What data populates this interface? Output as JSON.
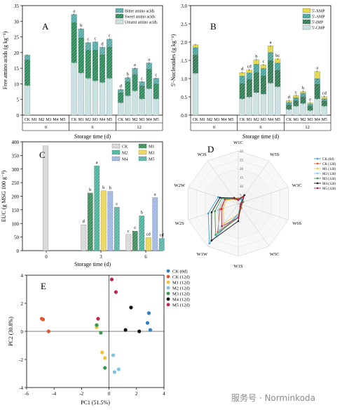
{
  "colors": {
    "bitter": "#5aaaa8",
    "sweet": "#2f8a5c",
    "umami": "#c7dfe0",
    "xmp": "#e3d54a",
    "amp": "#4aa49c",
    "imp": "#327a52",
    "gmp": "#c9dfe0",
    "ck": "#d8d8d8",
    "m1": "#3e8f5d",
    "m2": "#4cb49c",
    "m3": "#ead75a",
    "m4": "#9fb6e0",
    "m5": "#58b5a9"
  },
  "chart_data": [
    {
      "panel": "A",
      "type": "bar",
      "stacked": true,
      "ylabel": "Free amino acids (g kg⁻¹)",
      "xlabel": "Storage time (d)",
      "ylim": [
        0,
        35
      ],
      "yticks": [
        0,
        5,
        10,
        15,
        20,
        25,
        30,
        35
      ],
      "groups": [
        {
          "time": "0",
          "categories": [
            "CK",
            "M1",
            "M2",
            "M3",
            "M4",
            "M5"
          ]
        },
        {
          "time": "6",
          "categories": [
            "CK",
            "M1",
            "M2",
            "M3",
            "M4",
            "M5"
          ]
        },
        {
          "time": "12",
          "categories": [
            "CK",
            "M1",
            "M2",
            "M3",
            "M4",
            "M5"
          ]
        }
      ],
      "series": [
        {
          "name": "Umami amino acids",
          "color_key": "umami",
          "values": [
            9.5,
            0,
            0,
            0,
            0,
            0,
            16.8,
            13.5,
            11.8,
            11.0,
            10.5,
            11.8,
            4.0,
            6.2,
            7.8,
            5.2,
            8.5,
            5.2
          ]
        },
        {
          "name": "Sweet amino acids",
          "color_key": "sweet",
          "values": [
            8.2,
            0,
            0,
            0,
            0,
            0,
            12.8,
            11.2,
            9.0,
            9.8,
            8.8,
            10.0,
            3.2,
            4.5,
            5.2,
            4.2,
            6.2,
            4.8
          ]
        },
        {
          "name": "Bitter amino acids",
          "color_key": "bitter",
          "values": [
            1.5,
            0,
            0,
            0,
            0,
            0,
            2.6,
            2.9,
            2.4,
            2.6,
            2.4,
            2.5,
            1.0,
            1.3,
            2.0,
            1.3,
            2.0,
            1.8
          ]
        }
      ],
      "letters": [
        "",
        "",
        "",
        "",
        "",
        "",
        "a",
        "b",
        "c",
        "c",
        "d",
        "c",
        "d",
        "b",
        "a",
        "c",
        "a",
        "c"
      ]
    },
    {
      "panel": "B",
      "type": "bar",
      "stacked": true,
      "ylabel": "5'-Nucleotides (g kg⁻¹)",
      "xlabel": "Storage time (d)",
      "ylim": [
        0,
        3.0
      ],
      "yticks": [
        0,
        0.5,
        1.0,
        1.5,
        2.0,
        2.5,
        3.0
      ],
      "groups": [
        {
          "time": "0",
          "categories": [
            "CK",
            "M1",
            "M2",
            "M3",
            "M4",
            "M5"
          ]
        },
        {
          "time": "6",
          "categories": [
            "CK",
            "M1",
            "M2",
            "M3",
            "M4",
            "M5"
          ]
        },
        {
          "time": "12",
          "categories": [
            "CK",
            "M1",
            "M2",
            "M3",
            "M4",
            "M5"
          ]
        }
      ],
      "series": [
        {
          "name": "5'-GMP",
          "color_key": "gmp",
          "values": [
            1.15,
            0,
            0,
            0,
            0,
            0,
            0.45,
            0.5,
            0.62,
            0.58,
            0.88,
            0.78,
            0.16,
            0.25,
            0.32,
            0.13,
            0.45,
            0.25
          ]
        },
        {
          "name": "5'-IMP",
          "color_key": "imp",
          "values": [
            0.5,
            0,
            0,
            0,
            0,
            0,
            0.42,
            0.48,
            0.55,
            0.5,
            0.62,
            0.45,
            0.12,
            0.15,
            0.18,
            0.12,
            0.4,
            0.14
          ]
        },
        {
          "name": "5'-AMP",
          "color_key": "amp",
          "values": [
            0.2,
            0,
            0,
            0,
            0,
            0,
            0.2,
            0.18,
            0.23,
            0.2,
            0.22,
            0.2,
            0.07,
            0.08,
            0.1,
            0.05,
            0.15,
            0.06
          ]
        },
        {
          "name": "5'-XMP",
          "color_key": "xmp",
          "values": [
            0.08,
            0,
            0,
            0,
            0,
            0,
            0.1,
            0.08,
            0.12,
            0.1,
            0.18,
            0.11,
            0.05,
            0.06,
            0.05,
            0.04,
            0.2,
            0.06
          ]
        }
      ],
      "letters": [
        "",
        "",
        "",
        "",
        "",
        "",
        "d",
        "cd",
        "b",
        "c",
        "a",
        "bc",
        "d",
        "c",
        "b",
        "e",
        "a",
        "cd"
      ]
    },
    {
      "panel": "C",
      "type": "bar",
      "ylabel": "EUC (g MSG 100 g⁻¹)",
      "xlabel": "Storage time (d)",
      "ylim": [
        0,
        400
      ],
      "yticks": [
        0,
        50,
        100,
        150,
        200,
        250,
        300,
        350,
        400
      ],
      "legend": [
        "CK",
        "M1",
        "M2",
        "M3",
        "M4",
        "M5"
      ],
      "groups": [
        {
          "time": "0",
          "values": [
            385
          ]
        },
        {
          "time": "3",
          "values": [
            95,
            212,
            312,
            220,
            218,
            160
          ],
          "letters": [
            "d",
            "b",
            "a",
            "b",
            "b",
            "c"
          ]
        },
        {
          "time": "6",
          "values": [
            60,
            72,
            128,
            48,
            195,
            45
          ],
          "letters": [
            "c",
            "c",
            "b",
            "cd",
            "a",
            "cd"
          ]
        }
      ]
    },
    {
      "panel": "D",
      "type": "radar",
      "axes": [
        "W1C",
        "W5S",
        "W3C",
        "W6S",
        "W5C",
        "W1S",
        "W1W",
        "W2S",
        "W2W",
        "W3S"
      ],
      "rticks": [
        0,
        5,
        10,
        15,
        20,
        25,
        30
      ],
      "rmax": 30,
      "series": [
        {
          "name": "CK (0d)",
          "color": "#3aa0dc",
          "values": [
            2,
            3,
            2,
            1.5,
            2,
            6,
            28,
            18,
            12,
            3
          ]
        },
        {
          "name": "CK (12d)",
          "color": "#e55a2b",
          "values": [
            3,
            5,
            3,
            2,
            3,
            8,
            20,
            11,
            8,
            4
          ]
        },
        {
          "name": "M1 (12d)",
          "color": "#f2c14a",
          "values": [
            2,
            4,
            2,
            1.5,
            2.5,
            6,
            14,
            9,
            7,
            3
          ]
        },
        {
          "name": "M2 (12d)",
          "color": "#8cc6e6",
          "values": [
            2,
            4,
            2,
            1.5,
            2,
            7,
            19,
            12,
            9,
            3.5
          ]
        },
        {
          "name": "M3 (12d)",
          "color": "#3a9a4e",
          "values": [
            2.5,
            5,
            2.5,
            1.5,
            2.5,
            8,
            22,
            14,
            10,
            4
          ]
        },
        {
          "name": "M4 (12d)",
          "color": "#1a1a1a",
          "values": [
            2,
            6,
            2,
            1.5,
            2,
            10,
            26,
            16,
            11,
            4
          ]
        },
        {
          "name": "M5 (12d)",
          "color": "#b3264b",
          "values": [
            2,
            5,
            2,
            1.5,
            2,
            8,
            16,
            10,
            8,
            3.5
          ]
        }
      ]
    },
    {
      "panel": "E",
      "type": "scatter",
      "xlabel": "PC1 (51.5%)",
      "ylabel": "PC2 (30.8%)",
      "xlim": [
        -6,
        4
      ],
      "ylim": [
        -4,
        4
      ],
      "xticks": [
        -6,
        -4,
        -2,
        0,
        2,
        4
      ],
      "yticks": [
        -4,
        -2,
        0,
        2,
        4
      ],
      "series": [
        {
          "name": "CK (0d)",
          "color": "#2f7ebf",
          "points": [
            [
              2.9,
              1.3
            ],
            [
              2.8,
              0.6
            ],
            [
              3.0,
              0.1
            ]
          ]
        },
        {
          "name": "CK (12d)",
          "color": "#e4572e",
          "points": [
            [
              -4.9,
              0.9
            ],
            [
              -4.8,
              0.85
            ],
            [
              -4.4,
              0.0
            ]
          ]
        },
        {
          "name": "M1 (12d)",
          "color": "#f2c230",
          "points": [
            [
              -0.9,
              0.3
            ],
            [
              -0.5,
              -1.5
            ],
            [
              -0.3,
              -1.9
            ]
          ]
        },
        {
          "name": "M2 (12d)",
          "color": "#7ec4e8",
          "points": [
            [
              0.3,
              -1.7
            ],
            [
              0.7,
              -2.7
            ],
            [
              0.4,
              -2.9
            ]
          ]
        },
        {
          "name": "M3 (12d)",
          "color": "#3a9a4e",
          "points": [
            [
              -0.9,
              0.45
            ],
            [
              -0.6,
              -0.1
            ],
            [
              -0.3,
              -2.6
            ]
          ]
        },
        {
          "name": "M4 (12d)",
          "color": "#111111",
          "points": [
            [
              1.2,
              0.1
            ],
            [
              1.6,
              1.7
            ],
            [
              2.2,
              0.0
            ]
          ]
        },
        {
          "name": "M5 (12d)",
          "color": "#c4234a",
          "points": [
            [
              0.2,
              3.7
            ],
            [
              0.5,
              2.8
            ],
            [
              -0.8,
              0.9
            ]
          ]
        }
      ]
    }
  ],
  "watermark": "服务号 · Norminkoda"
}
